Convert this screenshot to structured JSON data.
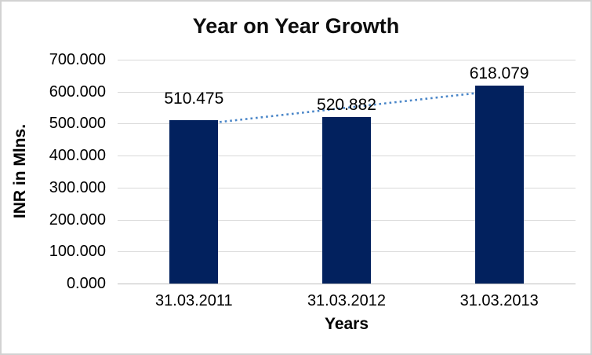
{
  "chart_data": {
    "type": "bar",
    "title": "Year on Year Growth",
    "categories": [
      "31.03.2011",
      "31.03.2012",
      "31.03.2013"
    ],
    "values": [
      510.475,
      520.882,
      618.079
    ],
    "data_labels": [
      "510.475",
      "520.882",
      "618.079"
    ],
    "xlabel": "Years",
    "ylabel": "INR in Mlns.",
    "ylim": [
      0,
      700
    ],
    "ytick_step": 100,
    "ytick_labels": [
      "0.000",
      "100.000",
      "200.000",
      "300.000",
      "400.000",
      "500.000",
      "600.000",
      "700.000"
    ],
    "grid": true,
    "legend": "none",
    "trendline": {
      "type": "linear",
      "style": "dotted"
    },
    "colors": {
      "bar": "#02215e",
      "trendline": "#4a86c8",
      "gridline": "#d9d9d9",
      "axis_line": "#bfbfbf",
      "text": "#000000",
      "background": "#ffffff",
      "frame_border": "#d2d2d2"
    }
  }
}
